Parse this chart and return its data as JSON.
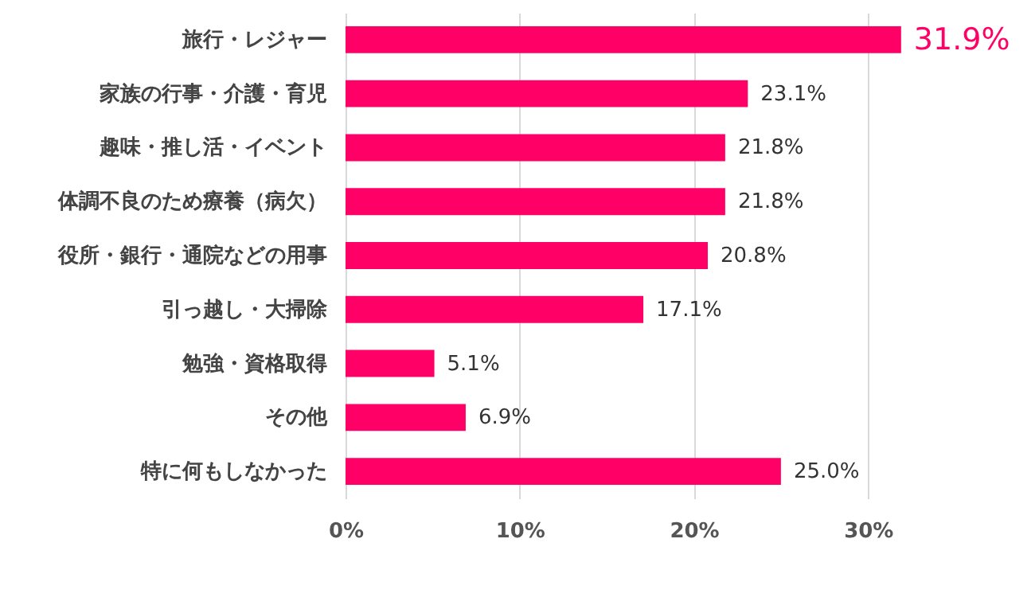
{
  "chart_data": {
    "type": "bar",
    "orientation": "horizontal",
    "categories": [
      "旅行・レジャー",
      "家族の行事・介護・育児",
      "趣味・推し活・イベント",
      "体調不良のため療養（病欠）",
      "役所・銀行・通院などの用事",
      "引っ越し・大掃除",
      "勉強・資格取得",
      "その他",
      "特に何もしなかった"
    ],
    "values": [
      31.9,
      23.1,
      21.8,
      21.8,
      20.8,
      17.1,
      5.1,
      6.9,
      25.0
    ],
    "value_labels": [
      "31.9%",
      "23.1%",
      "21.8%",
      "21.8%",
      "20.8%",
      "17.1%",
      "5.1%",
      "6.9%",
      "25.0%"
    ],
    "color": "#ff0066",
    "xlim": [
      0,
      32
    ],
    "xticks": [
      {
        "value": 0,
        "label": "0%"
      },
      {
        "value": 10,
        "label": "10%"
      },
      {
        "value": 20,
        "label": "20%"
      },
      {
        "value": 30,
        "label": "30%"
      }
    ],
    "grid": "x"
  }
}
